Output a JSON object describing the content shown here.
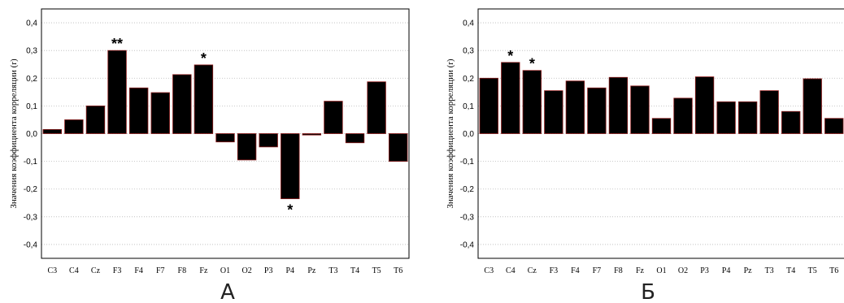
{
  "chart_data": [
    {
      "type": "bar",
      "panel_label": "А",
      "ylabel": "Значения коэффициента корреляции (r)",
      "ylim": [
        -0.45,
        0.45
      ],
      "yticks": [
        "-0,4",
        "-0,3",
        "-0,2",
        "-0,1",
        "0,0",
        "0,1",
        "0,2",
        "0,3",
        "0,4"
      ],
      "grid": true,
      "categories": [
        "C3",
        "C4",
        "Cz",
        "F3",
        "F4",
        "F7",
        "F8",
        "Fz",
        "O1",
        "O2",
        "P3",
        "P4",
        "Pz",
        "T3",
        "T4",
        "T5",
        "T6"
      ],
      "values": [
        0.015,
        0.05,
        0.1,
        0.3,
        0.165,
        0.148,
        0.213,
        0.248,
        -0.03,
        -0.095,
        -0.048,
        -0.235,
        -0.005,
        0.117,
        -0.033,
        0.187,
        -0.1
      ],
      "annotations": [
        {
          "category": "F3",
          "text": "**"
        },
        {
          "category": "Fz",
          "text": "*"
        },
        {
          "category": "P4",
          "text": "*"
        }
      ]
    },
    {
      "type": "bar",
      "panel_label": "Б",
      "ylabel": "Значения коэффициента корреляции (r)",
      "ylim": [
        -0.45,
        0.45
      ],
      "yticks": [
        "-0,4",
        "-0,3",
        "-0,2",
        "-0,1",
        "0,0",
        "0,1",
        "0,2",
        "0,3",
        "0,4"
      ],
      "grid": true,
      "categories": [
        "C3",
        "C4",
        "Cz",
        "F3",
        "F4",
        "F7",
        "F8",
        "Fz",
        "O1",
        "O2",
        "P3",
        "P4",
        "Pz",
        "T3",
        "T4",
        "T5",
        "T6"
      ],
      "values": [
        0.2,
        0.257,
        0.228,
        0.155,
        0.19,
        0.165,
        0.203,
        0.172,
        0.055,
        0.128,
        0.205,
        0.115,
        0.115,
        0.155,
        0.08,
        0.198,
        0.055
      ],
      "annotations": [
        {
          "category": "C4",
          "text": "*"
        },
        {
          "category": "Cz",
          "text": "*"
        }
      ]
    }
  ]
}
